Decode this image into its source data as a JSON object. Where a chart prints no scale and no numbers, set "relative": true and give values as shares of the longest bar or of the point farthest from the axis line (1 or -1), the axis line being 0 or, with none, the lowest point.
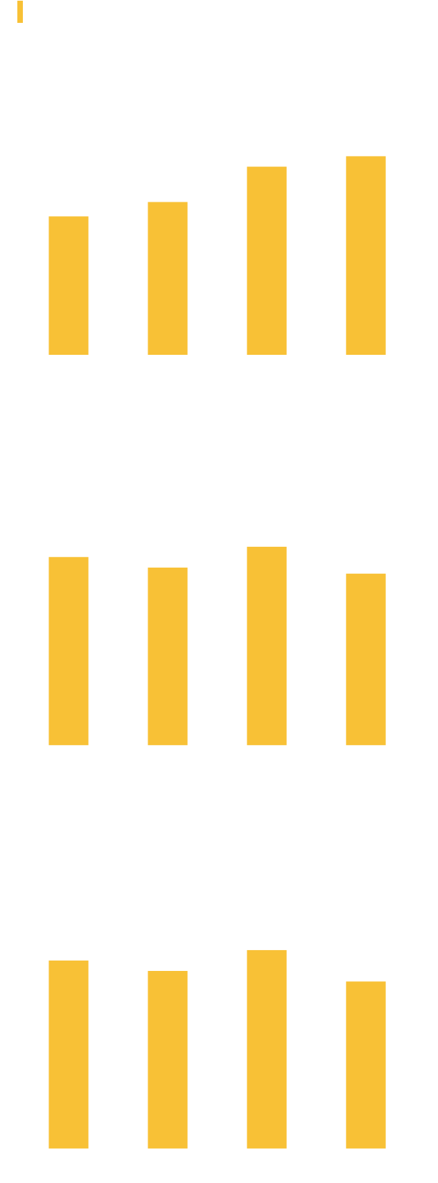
{
  "chart_data": [
    {
      "type": "bar",
      "relative": true,
      "categories": [
        null,
        null,
        null,
        null
      ],
      "values": [
        0.697,
        0.769,
        0.947,
        1
      ],
      "color": "#f8c136"
    },
    {
      "type": "bar",
      "relative": true,
      "categories": [
        null,
        null,
        null,
        null
      ],
      "values": [
        0.947,
        0.894,
        1,
        0.864
      ],
      "color": "#f8c136"
    },
    {
      "type": "bar",
      "relative": true,
      "categories": [
        null,
        null,
        null,
        null
      ],
      "values": [
        0.947,
        0.894,
        1,
        0.841
      ],
      "color": "#f8c136"
    }
  ]
}
